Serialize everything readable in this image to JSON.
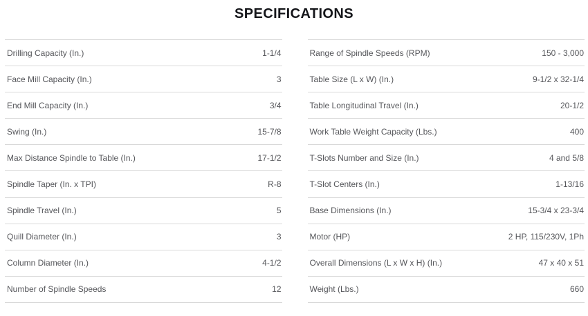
{
  "title": "SPECIFICATIONS",
  "colors": {
    "title_text": "#15161a",
    "row_text": "#55565a",
    "divider": "#d9d9d9",
    "background": "#ffffff"
  },
  "spec_table": {
    "columns": [
      {
        "rows": [
          {
            "label": "Drilling Capacity (In.)",
            "value": "1-1/4"
          },
          {
            "label": "Face Mill Capacity (In.)",
            "value": "3"
          },
          {
            "label": "End Mill Capacity (In.)",
            "value": "3/4"
          },
          {
            "label": "Swing (In.)",
            "value": "15-7/8"
          },
          {
            "label": "Max Distance Spindle to Table (In.)",
            "value": "17-1/2"
          },
          {
            "label": "Spindle Taper (In. x TPI)",
            "value": "R-8"
          },
          {
            "label": "Spindle Travel (In.)",
            "value": "5"
          },
          {
            "label": "Quill Diameter (In.)",
            "value": "3"
          },
          {
            "label": "Column Diameter (In.)",
            "value": "4-1/2"
          },
          {
            "label": "Number of Spindle Speeds",
            "value": "12"
          }
        ]
      },
      {
        "rows": [
          {
            "label": "Range of Spindle Speeds (RPM)",
            "value": "150 - 3,000"
          },
          {
            "label": "Table Size (L x W) (In.)",
            "value": "9-1/2 x 32-1/4"
          },
          {
            "label": "Table Longitudinal Travel (In.)",
            "value": "20-1/2"
          },
          {
            "label": "Work Table Weight Capacity (Lbs.)",
            "value": "400"
          },
          {
            "label": "T-Slots Number and Size (In.)",
            "value": "4 and 5/8"
          },
          {
            "label": "T-Slot Centers (In.)",
            "value": "1-13/16"
          },
          {
            "label": "Base Dimensions (In.)",
            "value": "15-3/4 x 23-3/4"
          },
          {
            "label": "Motor (HP)",
            "value": "2 HP, 115/230V, 1Ph"
          },
          {
            "label": "Overall Dimensions (L x W x H) (In.)",
            "value": "47 x 40 x 51"
          },
          {
            "label": "Weight (Lbs.)",
            "value": "660"
          }
        ]
      }
    ]
  }
}
